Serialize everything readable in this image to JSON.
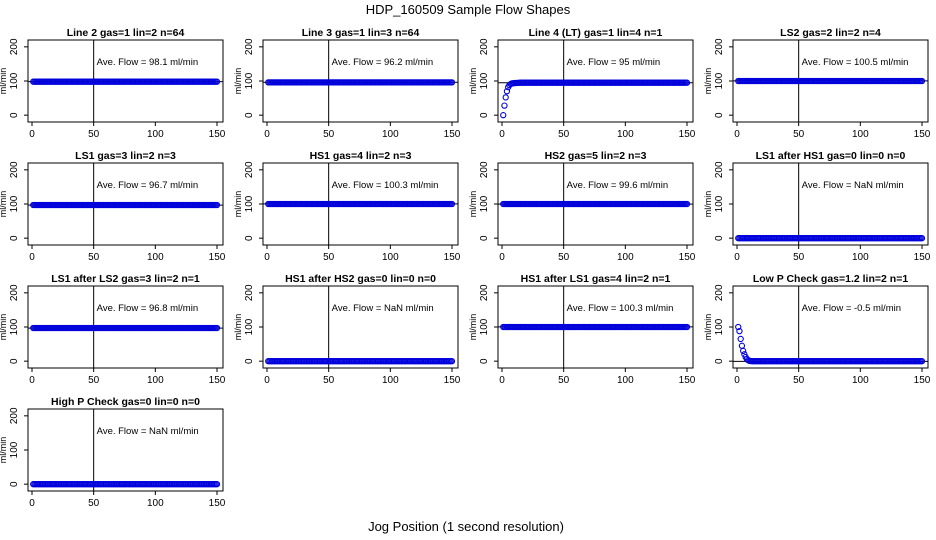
{
  "figure": {
    "title": "HDP_160509  Sample Flow Shapes",
    "xlabel": "Jog Position (1 second resolution)"
  },
  "colors": {
    "points": "#0000dd",
    "axes": "#000000"
  },
  "chart_data": [
    {
      "type": "scatter",
      "title": "Line 2 gas=1 lin=2 n=64",
      "annotation": "Ave. Flow =  98.1  ml/min",
      "ylabel": "ml/min",
      "xlim": [
        0,
        150
      ],
      "ylim": [
        -20,
        220
      ],
      "xticks": [
        0,
        50,
        100,
        150
      ],
      "yticks": [
        0,
        100,
        200
      ],
      "vline_x": 50,
      "mean_flow": 98.1,
      "x": [
        1,
        150
      ],
      "y": [
        98,
        98
      ]
    },
    {
      "type": "scatter",
      "title": "Line 3 gas=1 lin=3 n=64",
      "annotation": "Ave. Flow =  96.2  ml/min",
      "ylabel": "ml/min",
      "xlim": [
        0,
        150
      ],
      "ylim": [
        -20,
        220
      ],
      "xticks": [
        0,
        50,
        100,
        150
      ],
      "yticks": [
        0,
        100,
        200
      ],
      "vline_x": 50,
      "mean_flow": 96.2,
      "x": [
        1,
        150
      ],
      "y": [
        96,
        96
      ]
    },
    {
      "type": "scatter",
      "title": "Line 4 (LT) gas=1 lin=4 n=1",
      "annotation": "Ave. Flow =  95  ml/min",
      "ylabel": "ml/min",
      "xlim": [
        0,
        150
      ],
      "ylim": [
        -20,
        220
      ],
      "xticks": [
        0,
        50,
        100,
        150
      ],
      "yticks": [
        0,
        100,
        200
      ],
      "vline_x": 50,
      "mean_flow": 95,
      "x": [
        1,
        2,
        3,
        4,
        5,
        6,
        7,
        8,
        10,
        15,
        150
      ],
      "y": [
        0,
        28,
        52,
        70,
        82,
        88,
        91,
        93,
        94,
        95,
        95
      ]
    },
    {
      "type": "scatter",
      "title": "LS2 gas=2 lin=2 n=4",
      "annotation": "Ave. Flow =  100.5  ml/min",
      "ylabel": "ml/min",
      "xlim": [
        0,
        150
      ],
      "ylim": [
        -20,
        220
      ],
      "xticks": [
        0,
        50,
        100,
        150
      ],
      "yticks": [
        0,
        100,
        200
      ],
      "vline_x": 50,
      "mean_flow": 100.5,
      "x": [
        1,
        150
      ],
      "y": [
        100,
        100
      ]
    },
    {
      "type": "scatter",
      "title": "LS1 gas=3 lin=2 n=3",
      "annotation": "Ave. Flow =  96.7  ml/min",
      "ylabel": "ml/min",
      "xlim": [
        0,
        150
      ],
      "ylim": [
        -20,
        220
      ],
      "xticks": [
        0,
        50,
        100,
        150
      ],
      "yticks": [
        0,
        100,
        200
      ],
      "vline_x": 50,
      "mean_flow": 96.7,
      "x": [
        1,
        150
      ],
      "y": [
        97,
        97
      ]
    },
    {
      "type": "scatter",
      "title": "HS1 gas=4 lin=2 n=3",
      "annotation": "Ave. Flow =  100.3  ml/min",
      "ylabel": "ml/min",
      "xlim": [
        0,
        150
      ],
      "ylim": [
        -20,
        220
      ],
      "xticks": [
        0,
        50,
        100,
        150
      ],
      "yticks": [
        0,
        100,
        200
      ],
      "vline_x": 50,
      "mean_flow": 100.3,
      "x": [
        1,
        150
      ],
      "y": [
        100,
        100
      ]
    },
    {
      "type": "scatter",
      "title": "HS2 gas=5 lin=2 n=3",
      "annotation": "Ave. Flow =  99.6  ml/min",
      "ylabel": "ml/min",
      "xlim": [
        0,
        150
      ],
      "ylim": [
        -20,
        220
      ],
      "xticks": [
        0,
        50,
        100,
        150
      ],
      "yticks": [
        0,
        100,
        200
      ],
      "vline_x": 50,
      "mean_flow": 99.6,
      "x": [
        1,
        150
      ],
      "y": [
        100,
        100
      ]
    },
    {
      "type": "scatter",
      "title": "LS1 after HS1 gas=0 lin=0 n=0",
      "annotation": "Ave. Flow =  NaN  ml/min",
      "ylabel": "ml/min",
      "xlim": [
        0,
        150
      ],
      "ylim": [
        -20,
        220
      ],
      "xticks": [
        0,
        50,
        100,
        150
      ],
      "yticks": [
        0,
        100,
        200
      ],
      "vline_x": 50,
      "mean_flow": null,
      "x": [
        1,
        150
      ],
      "y": [
        0,
        0
      ]
    },
    {
      "type": "scatter",
      "title": "LS1 after LS2 gas=3 lin=2 n=1",
      "annotation": "Ave. Flow =  96.8  ml/min",
      "ylabel": "ml/min",
      "xlim": [
        0,
        150
      ],
      "ylim": [
        -20,
        220
      ],
      "xticks": [
        0,
        50,
        100,
        150
      ],
      "yticks": [
        0,
        100,
        200
      ],
      "vline_x": 50,
      "mean_flow": 96.8,
      "x": [
        1,
        150
      ],
      "y": [
        97,
        97
      ]
    },
    {
      "type": "scatter",
      "title": "HS1 after HS2 gas=0 lin=0 n=0",
      "annotation": "Ave. Flow =  NaN  ml/min",
      "ylabel": "ml/min",
      "xlim": [
        0,
        150
      ],
      "ylim": [
        -20,
        220
      ],
      "xticks": [
        0,
        50,
        100,
        150
      ],
      "yticks": [
        0,
        100,
        200
      ],
      "vline_x": 50,
      "mean_flow": null,
      "x": [
        1,
        150
      ],
      "y": [
        0,
        0
      ]
    },
    {
      "type": "scatter",
      "title": "HS1 after LS1 gas=4 lin=2 n=1",
      "annotation": "Ave. Flow =  100.3  ml/min",
      "ylabel": "ml/min",
      "xlim": [
        0,
        150
      ],
      "ylim": [
        -20,
        220
      ],
      "xticks": [
        0,
        50,
        100,
        150
      ],
      "yticks": [
        0,
        100,
        200
      ],
      "vline_x": 50,
      "mean_flow": 100.3,
      "x": [
        1,
        150
      ],
      "y": [
        100,
        100
      ]
    },
    {
      "type": "scatter",
      "title": "Low P Check gas=1.2 lin=2 n=1",
      "annotation": "Ave. Flow =  -0.5  ml/min",
      "ylabel": "ml/min",
      "xlim": [
        0,
        150
      ],
      "ylim": [
        -20,
        220
      ],
      "xticks": [
        0,
        50,
        100,
        150
      ],
      "yticks": [
        0,
        100,
        200
      ],
      "vline_x": 50,
      "mean_flow": -0.5,
      "x": [
        1,
        2,
        3,
        4,
        5,
        6,
        7,
        8,
        9,
        10,
        12,
        150
      ],
      "y": [
        100,
        88,
        65,
        45,
        30,
        20,
        12,
        6,
        3,
        1,
        0,
        0
      ]
    },
    {
      "type": "scatter",
      "title": "High P Check gas=0 lin=0 n=0",
      "annotation": "Ave. Flow =  NaN  ml/min",
      "ylabel": "ml/min",
      "xlim": [
        0,
        150
      ],
      "ylim": [
        -20,
        220
      ],
      "xticks": [
        0,
        50,
        100,
        150
      ],
      "yticks": [
        0,
        100,
        200
      ],
      "vline_x": 50,
      "mean_flow": null,
      "x": [
        1,
        150
      ],
      "y": [
        0,
        0
      ]
    }
  ]
}
